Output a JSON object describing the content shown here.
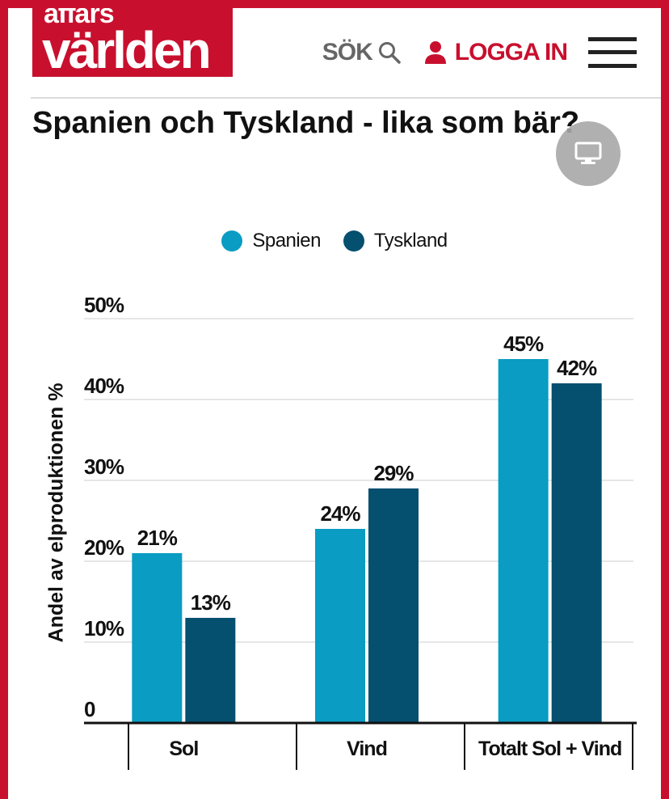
{
  "header": {
    "logo_top": "affärs",
    "logo_bottom": "världen",
    "search_label": "SÖK",
    "login_label": "LOGGA IN"
  },
  "icons": {
    "search": "search-icon",
    "user": "user-icon",
    "menu": "hamburger-menu-icon",
    "screen": "monitor-icon"
  },
  "article": {
    "title": "Spanien och Tyskland - lika som bär?"
  },
  "colors": {
    "brand": "#c8102e",
    "spanien": "#0a9cc2",
    "tyskland": "#054f6f"
  },
  "chart_data": {
    "type": "bar",
    "title": "",
    "ylabel": "Andel av elproduktionen %",
    "xlabel": "",
    "categories": [
      "Sol",
      "Vind",
      "Totalt Sol + Vind"
    ],
    "series": [
      {
        "name": "Spanien",
        "values": [
          21,
          24,
          45
        ],
        "labels": [
          "21%",
          "24%",
          "45%"
        ]
      },
      {
        "name": "Tyskland",
        "values": [
          13,
          29,
          42
        ],
        "labels": [
          "13%",
          "29%",
          "42%"
        ]
      }
    ],
    "ylim": [
      0,
      50
    ],
    "yticks": [
      0,
      10,
      20,
      30,
      40,
      50
    ],
    "ytick_labels": [
      "0",
      "10%",
      "20%",
      "30%",
      "40%",
      "50%"
    ],
    "grid": true,
    "legend": "top-center"
  }
}
